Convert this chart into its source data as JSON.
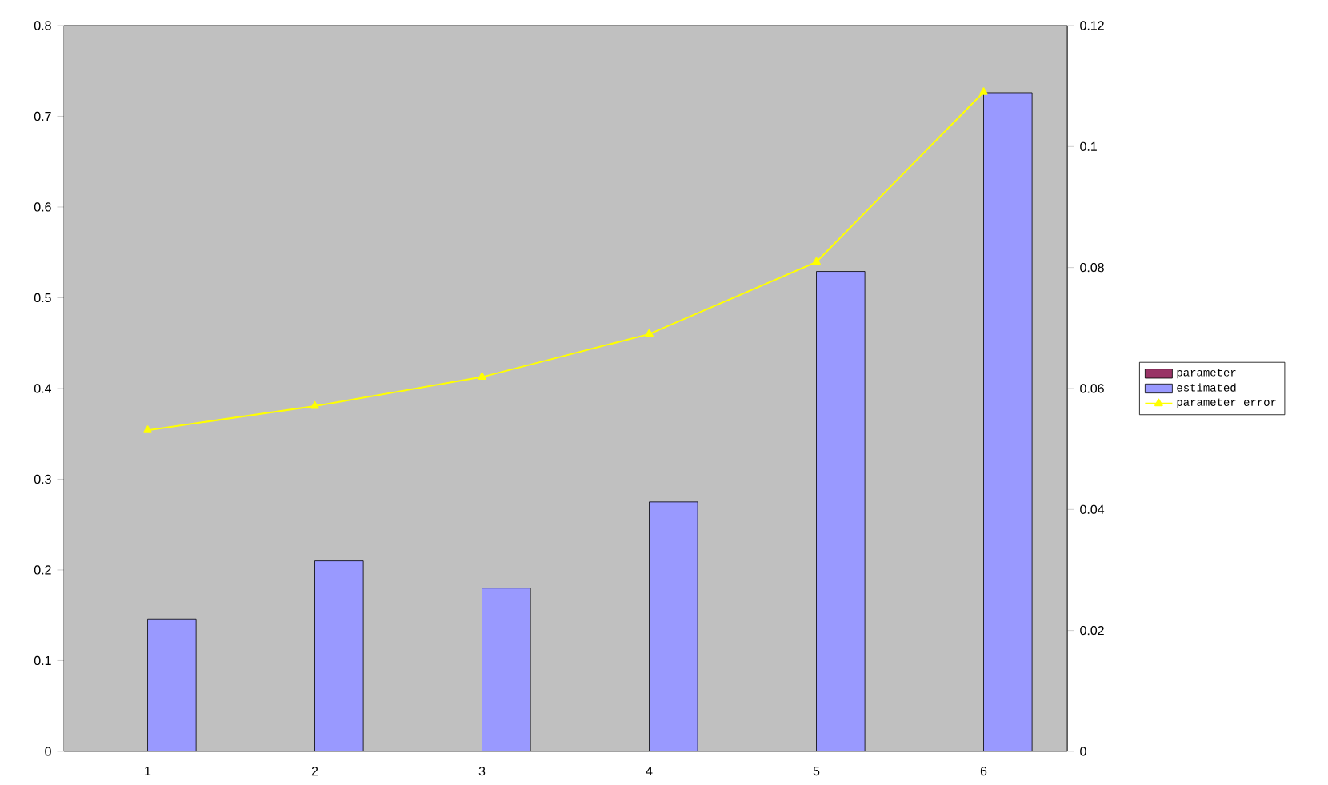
{
  "chart_data": {
    "type": "bar",
    "categories": [
      "1",
      "2",
      "3",
      "4",
      "5",
      "6"
    ],
    "series": [
      {
        "name": "parameter",
        "color": "#993366",
        "values": [
          null,
          null,
          null,
          null,
          null,
          null
        ]
      },
      {
        "name": "estimated",
        "color": "#9999ff",
        "values": [
          0.146,
          0.21,
          0.18,
          0.275,
          0.529,
          0.726
        ]
      },
      {
        "name": "parameter error",
        "type": "line",
        "axis": "y2",
        "color": "#ffff00",
        "marker": "triangle",
        "values": [
          0.0531,
          0.0571,
          0.0619,
          0.069,
          0.0809,
          0.109
        ]
      }
    ],
    "ylim": [
      0,
      0.8
    ],
    "yticks": [
      0,
      0.1,
      0.2,
      0.3,
      0.4,
      0.5,
      0.6,
      0.7,
      0.8
    ],
    "y2lim": [
      0,
      0.12
    ],
    "y2ticks": [
      0,
      0.02,
      0.04,
      0.06,
      0.08,
      0.1,
      0.12
    ],
    "grid": false,
    "legend": "right"
  }
}
